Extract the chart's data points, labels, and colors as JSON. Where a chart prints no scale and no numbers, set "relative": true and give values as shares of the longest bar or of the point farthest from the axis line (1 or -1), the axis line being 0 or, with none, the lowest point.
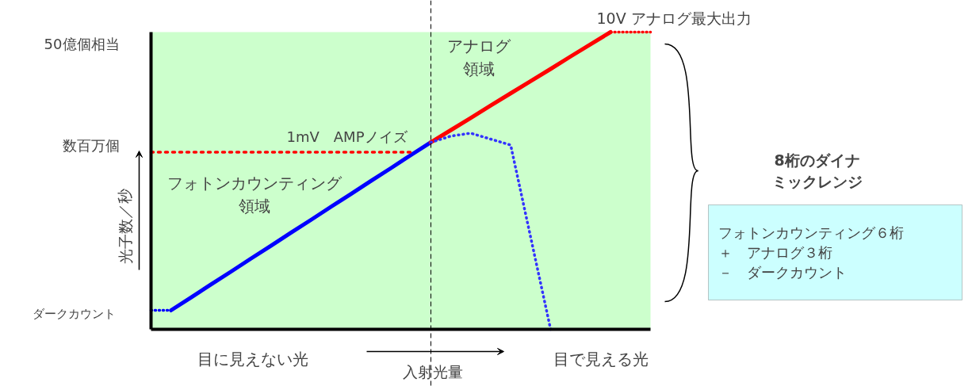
{
  "chart_data": {
    "type": "line",
    "relative": true,
    "xlabel": "入射光量",
    "ylabel": "光子数／秒",
    "categories": [
      null,
      null,
      null,
      null,
      null,
      null,
      null,
      null,
      null,
      null,
      null,
      null,
      null,
      null,
      null,
      null,
      null,
      null,
      null,
      null,
      null,
      null,
      null,
      null,
      null,
      null
    ],
    "series": [
      {
        "color": "#0000ff",
        "line_style": "dotted",
        "values": [
          0.064,
          0.064,
          null,
          null,
          null,
          null,
          null,
          null,
          null,
          null,
          null,
          null,
          null,
          null,
          null,
          null,
          null,
          null,
          null,
          null,
          null,
          null,
          null,
          null,
          null,
          null
        ]
      },
      {
        "color": "#0000ff",
        "line_style": "solid",
        "values": [
          null,
          0.064,
          0.107,
          0.151,
          0.194,
          0.238,
          0.281,
          0.325,
          0.368,
          0.412,
          0.455,
          0.499,
          0.542,
          0.586,
          0.629,
          null,
          null,
          null,
          null,
          null,
          null,
          null,
          null,
          null,
          null,
          null
        ]
      },
      {
        "color": "#ff0000",
        "line_style": "solid",
        "values": [
          null,
          null,
          null,
          null,
          null,
          null,
          null,
          null,
          null,
          null,
          null,
          null,
          null,
          null,
          0.629,
          0.67,
          0.711,
          0.753,
          0.794,
          0.835,
          0.876,
          0.918,
          0.959,
          1,
          null,
          null
        ]
      },
      {
        "color": "#ff0000",
        "line_style": "dotted",
        "values": [
          null,
          null,
          null,
          null,
          null,
          null,
          null,
          null,
          null,
          null,
          null,
          null,
          null,
          null,
          null,
          null,
          null,
          null,
          null,
          null,
          null,
          null,
          null,
          1,
          1,
          1
        ]
      },
      {
        "color": "#ff0000",
        "line_style": "dotted",
        "values": [
          0.596,
          0.596,
          0.596,
          0.596,
          0.596,
          0.596,
          0.596,
          0.596,
          0.596,
          0.596,
          0.596,
          0.596,
          0.596,
          0.596,
          null,
          null,
          null,
          null,
          null,
          null,
          null,
          null,
          null,
          null,
          null,
          null
        ]
      },
      {
        "color": "#3333ff",
        "line_style": "dotted",
        "values": [
          null,
          null,
          null,
          null,
          null,
          null,
          null,
          null,
          null,
          null,
          null,
          null,
          null,
          null,
          0.629,
          0.65,
          0.66,
          0.64,
          0.62,
          0.31,
          0,
          null,
          null,
          null,
          null,
          null
        ]
      }
    ],
    "annotations": [
      "10V アナログ最大出力",
      "1mV　AMPノイズ",
      "50億個相当",
      "数百万個",
      "ダークカウント",
      "アナログ領域",
      "フォトンカウンティング領域",
      "目に見えない光",
      "目で見える光",
      "8桁のダイナミックレンジ",
      "フォトンカウンティング６桁＋　アナログ３桁－　ダークカウント"
    ]
  }
}
